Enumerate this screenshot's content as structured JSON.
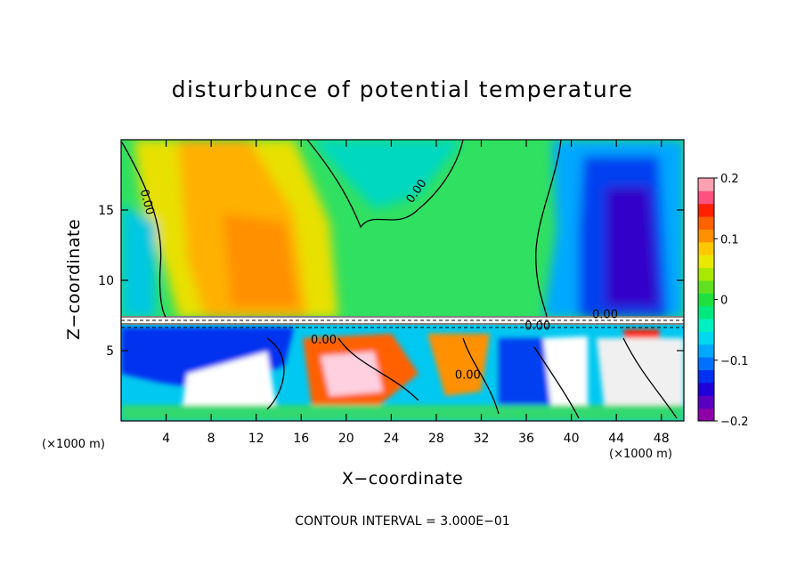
{
  "chart_data": {
    "type": "heatmap",
    "title": "disturbunce of potential temperature",
    "xlabel": "X−coordinate",
    "ylabel": "Z−coordinate",
    "x_unit_left": "(×1000 m)",
    "x_unit_right": "(×1000 m)",
    "xlim": [
      0,
      50
    ],
    "ylim": [
      0,
      20
    ],
    "x_ticks": [
      4,
      8,
      12,
      16,
      20,
      24,
      28,
      32,
      36,
      40,
      44,
      48
    ],
    "y_ticks": [
      5,
      10,
      15
    ],
    "colorbar": {
      "range": [
        -0.2,
        0.2
      ],
      "ticks": [
        {
          "value": 0.2,
          "label": "0.2"
        },
        {
          "value": 0.1,
          "label": "0.1"
        },
        {
          "value": 0,
          "label": "0"
        },
        {
          "value": -0.1,
          "label": "−0.1"
        },
        {
          "value": -0.2,
          "label": "−0.2"
        }
      ],
      "colors": [
        "#8e00a8",
        "#5a00c0",
        "#2000d8",
        "#0030f0",
        "#0070ff",
        "#00a8ff",
        "#00d8f0",
        "#00f0c0",
        "#00e880",
        "#20e040",
        "#60e020",
        "#a8e800",
        "#e8e800",
        "#ffc800",
        "#ff9000",
        "#ff6000",
        "#ff2000",
        "#ff5080",
        "#ffa0b0"
      ]
    },
    "contour_labels": [
      {
        "x": 2,
        "z": 15.5,
        "text": "0.00"
      },
      {
        "x": 26.5,
        "z": 16.2,
        "text": "0.00"
      },
      {
        "x": 18,
        "z": 5.5,
        "text": "0.00"
      },
      {
        "x": 30.8,
        "z": 3.0,
        "text": "0.00"
      },
      {
        "x": 37,
        "z": 6.5,
        "text": "0.00"
      },
      {
        "x": 43,
        "z": 7.3,
        "text": "0.00"
      }
    ],
    "contour_interval": "CONTOUR INTERVAL = 3.000E−01"
  }
}
